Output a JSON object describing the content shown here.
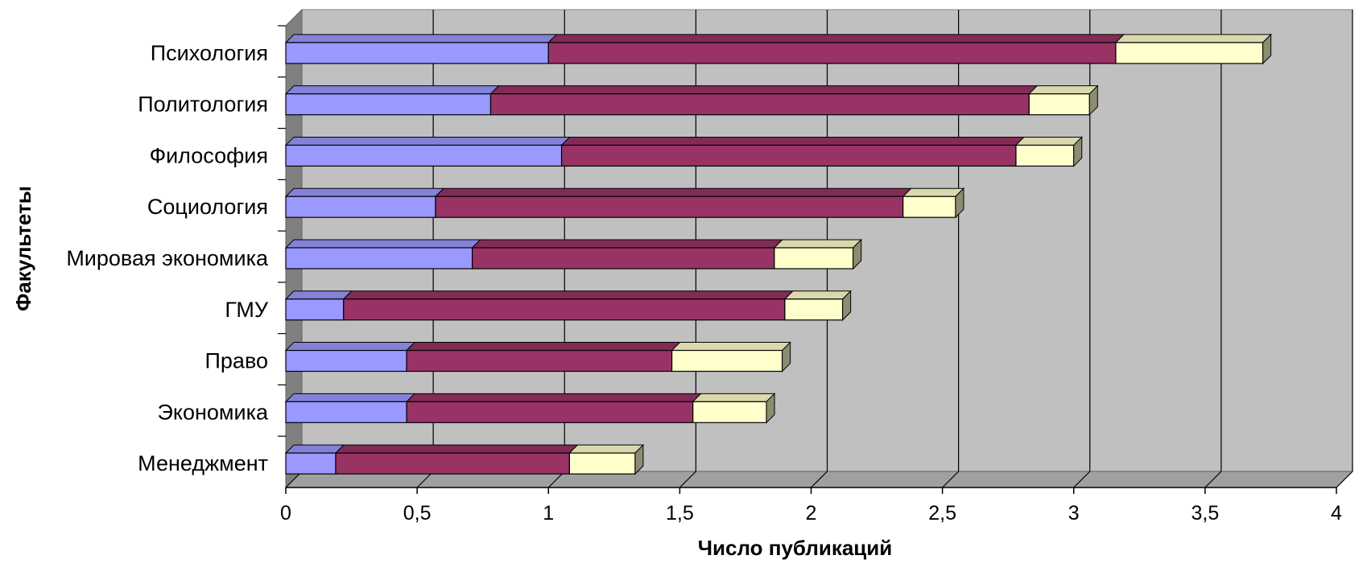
{
  "chart_data": {
    "type": "bar",
    "orientation": "horizontal",
    "stacked": true,
    "three_d": true,
    "title": "",
    "xlabel": "Число публикаций",
    "ylabel": "Факультеты",
    "xlim": [
      0,
      4
    ],
    "x_ticks": [
      "0",
      "0,5",
      "1",
      "1,5",
      "2",
      "2,5",
      "3",
      "3,5",
      "4"
    ],
    "grid": "vertical",
    "legend": "none",
    "categories": [
      "Психология",
      "Политология",
      "Философия",
      "Социология",
      "Мировая экономика",
      "ГМУ",
      "Право",
      "Экономика",
      "Менеджмент"
    ],
    "series": [
      {
        "color": "#9999ff",
        "values": [
          1.0,
          0.78,
          1.05,
          0.57,
          0.71,
          0.22,
          0.46,
          0.46,
          0.19
        ]
      },
      {
        "color": "#993366",
        "values": [
          2.16,
          2.05,
          1.73,
          1.78,
          1.15,
          1.68,
          1.01,
          1.09,
          0.89
        ]
      },
      {
        "color": "#ffffcc",
        "values": [
          0.56,
          0.23,
          0.22,
          0.2,
          0.3,
          0.22,
          0.42,
          0.28,
          0.25
        ]
      }
    ]
  }
}
